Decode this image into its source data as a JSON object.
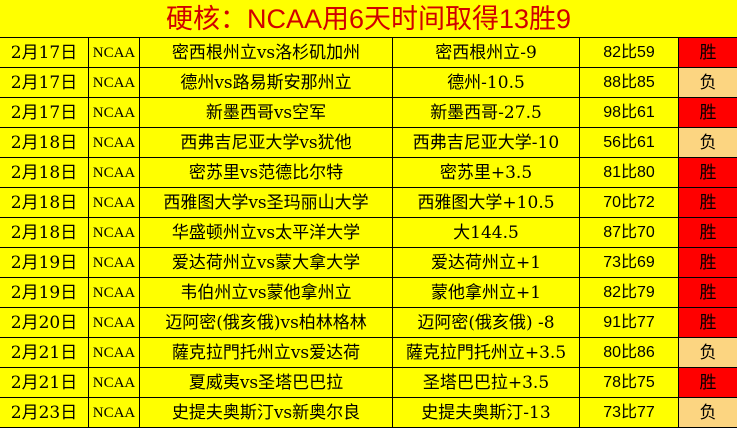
{
  "title": "硬核：NCAA用6天时间取得13胜9",
  "colors": {
    "background": "#ffff00",
    "win": "#ff0000",
    "loss": "#fcd581",
    "title": "#d00000"
  },
  "rows": [
    {
      "date": "2月17日",
      "league": "NCAA",
      "match": "密西根州立vs洛杉矶加州",
      "pick": "密西根州立-9",
      "score": "82比59",
      "result": "胜"
    },
    {
      "date": "2月17日",
      "league": "NCAA",
      "match": "德州vs路易斯安那州立",
      "pick": "德州-10.5",
      "score": "88比85",
      "result": "负"
    },
    {
      "date": "2月17日",
      "league": "NCAA",
      "match": "新墨西哥vs空军",
      "pick": "新墨西哥-27.5",
      "score": "98比61",
      "result": "胜"
    },
    {
      "date": "2月18日",
      "league": "NCAA",
      "match": "西弗吉尼亚大学vs犹他",
      "pick": "西弗吉尼亚大学-10",
      "score": "56比61",
      "result": "负"
    },
    {
      "date": "2月18日",
      "league": "NCAA",
      "match": "密苏里vs范德比尔特",
      "pick": "密苏里+3.5",
      "score": "81比80",
      "result": "胜"
    },
    {
      "date": "2月18日",
      "league": "NCAA",
      "match": "西雅图大学vs圣玛丽山大学",
      "pick": "西雅图大学+10.5",
      "score": "70比72",
      "result": "胜"
    },
    {
      "date": "2月18日",
      "league": "NCAA",
      "match": "华盛顿州立vs太平洋大学",
      "pick": "大144.5",
      "score": "87比70",
      "result": "胜"
    },
    {
      "date": "2月19日",
      "league": "NCAA",
      "match": "爱达荷州立vs蒙大拿大学",
      "pick": "爱达荷州立+1",
      "score": "73比69",
      "result": "胜"
    },
    {
      "date": "2月19日",
      "league": "NCAA",
      "match": "韦伯州立vs蒙他拿州立",
      "pick": "蒙他拿州立+1",
      "score": "82比79",
      "result": "胜"
    },
    {
      "date": "2月20日",
      "league": "NCAA",
      "match": "迈阿密(俄亥俄)vs柏林格林",
      "pick": "迈阿密(俄亥俄) -8",
      "score": "91比77",
      "result": "胜"
    },
    {
      "date": "2月21日",
      "league": "NCAA",
      "match": "薩克拉門托州立vs爱达荷",
      "pick": "薩克拉門托州立+3.5",
      "score": "80比86",
      "result": "负"
    },
    {
      "date": "2月21日",
      "league": "NCAA",
      "match": "夏威夷vs圣塔巴巴拉",
      "pick": "圣塔巴巴拉+3.5",
      "score": "78比75",
      "result": "胜"
    },
    {
      "date": "2月23日",
      "league": "NCAA",
      "match": "史提夫奥斯汀vs新奥尔良",
      "pick": "史提夫奥斯汀-13",
      "score": "73比77",
      "result": "负"
    }
  ]
}
